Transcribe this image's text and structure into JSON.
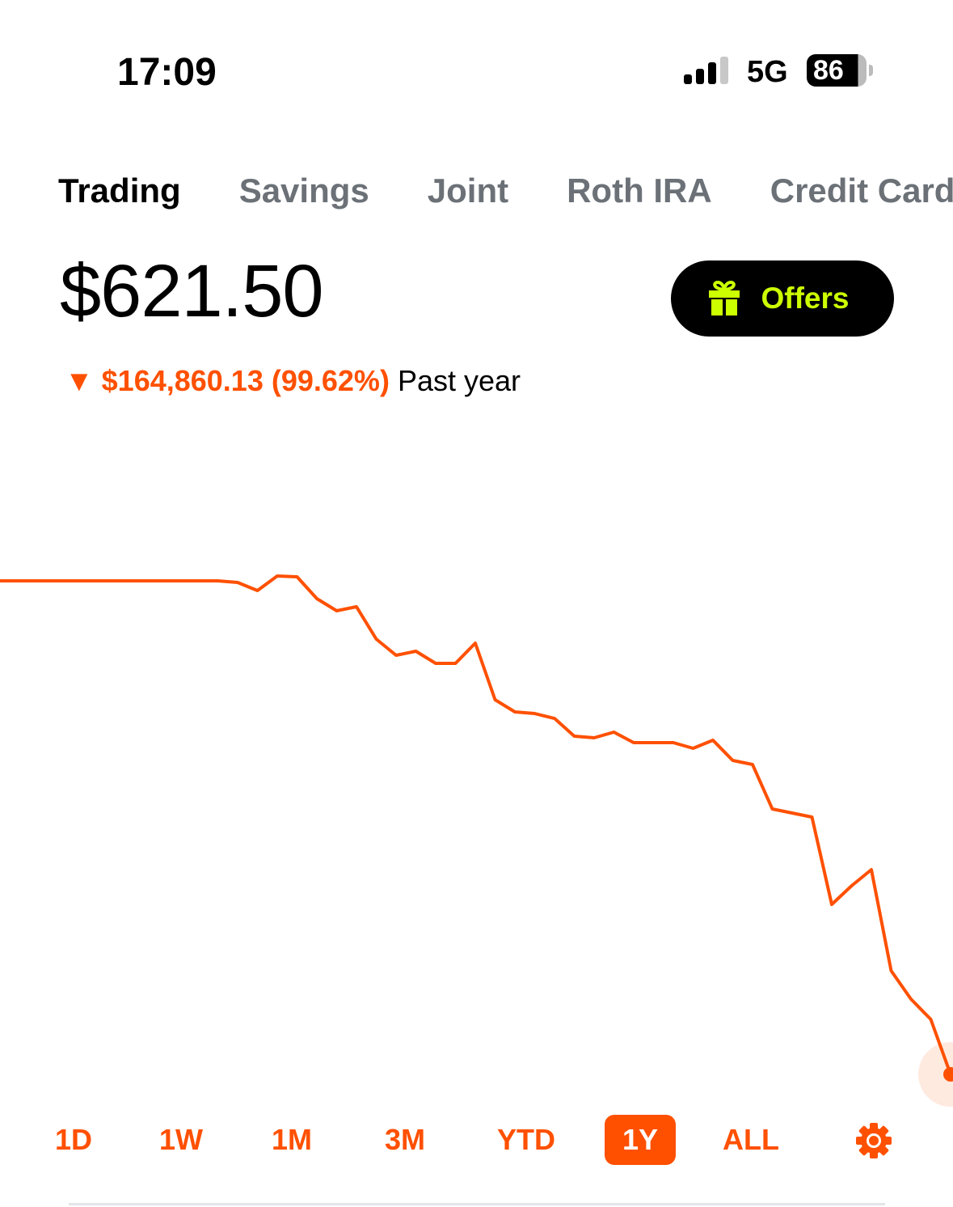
{
  "status_bar": {
    "time": "17:09",
    "network": "5G",
    "battery": "86"
  },
  "tabs": [
    {
      "label": "Trading",
      "active": true
    },
    {
      "label": "Savings"
    },
    {
      "label": "Joint"
    },
    {
      "label": "Roth IRA"
    },
    {
      "label": "Credit Card"
    }
  ],
  "portfolio": {
    "value": "$621.50",
    "change_arrow": "▼",
    "change": "$164,860.13 (99.62%)",
    "period": "Past year"
  },
  "offers_button": {
    "label": "Offers",
    "icon": "gift-icon"
  },
  "colors": {
    "accent": "#ff5000",
    "offers_text": "#ccff00"
  },
  "chart_data": {
    "type": "line",
    "ylim": [
      621.5,
      165481.63
    ],
    "values": [
      165482,
      165482,
      165482,
      165482,
      165482,
      165482,
      165482,
      165482,
      165482,
      165482,
      165482,
      165482,
      164940,
      162237,
      167102,
      166831,
      159534,
      155480,
      156831,
      146021,
      140616,
      141967,
      137913,
      137913,
      144670,
      125751,
      121697,
      121157,
      119535,
      113590,
      113049,
      114941,
      111428,
      111428,
      111428,
      109536,
      112238,
      105482,
      104131,
      89266,
      87915,
      86564,
      57376,
      63592,
      68997,
      35214,
      25755,
      18999,
      621.5
    ],
    "grid": false,
    "color": "#ff5000"
  },
  "ranges": [
    {
      "label": "1D"
    },
    {
      "label": "1W"
    },
    {
      "label": "1M"
    },
    {
      "label": "3M"
    },
    {
      "label": "YTD"
    },
    {
      "label": "1Y",
      "active": true
    },
    {
      "label": "ALL"
    }
  ],
  "settings_icon": "gear-icon"
}
